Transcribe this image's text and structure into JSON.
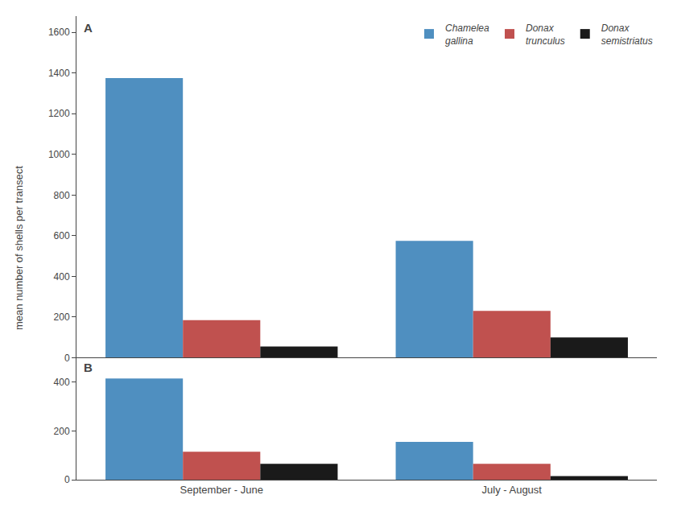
{
  "chart_data": [
    {
      "type": "bar",
      "categories": [
        "September - June",
        "July - August"
      ],
      "series": [
        {
          "name": "Chamelea\ngallina",
          "color": "#4f8fc0",
          "values": [
            1375,
            575
          ]
        },
        {
          "name": "Donax\ntrunculus",
          "color": "#c0514f",
          "values": [
            185,
            230
          ]
        },
        {
          "name": "Donax\nsemistriatus",
          "color": "#1a1a1a",
          "values": [
            55,
            100
          ]
        }
      ],
      "ylabel": "mean number of shells per transect",
      "annotations": [
        "A"
      ],
      "ylim": [
        0,
        1680
      ],
      "yticks": [
        0,
        200,
        400,
        600,
        800,
        1000,
        1200,
        1400,
        1600
      ],
      "grid": false,
      "legend": "upper right",
      "tick_labels": "y"
    },
    {
      "type": "bar",
      "categories": [
        "September - June",
        "July - August"
      ],
      "series": [
        {
          "color": "#4f8fc0",
          "values": [
            415,
            155
          ]
        },
        {
          "color": "#c0514f",
          "values": [
            115,
            65
          ]
        },
        {
          "color": "#1a1a1a",
          "values": [
            65,
            15
          ]
        }
      ],
      "annotations": [
        "B"
      ],
      "ylim": [
        0,
        500
      ],
      "yticks": [
        0,
        200,
        400
      ],
      "grid": false
    }
  ]
}
